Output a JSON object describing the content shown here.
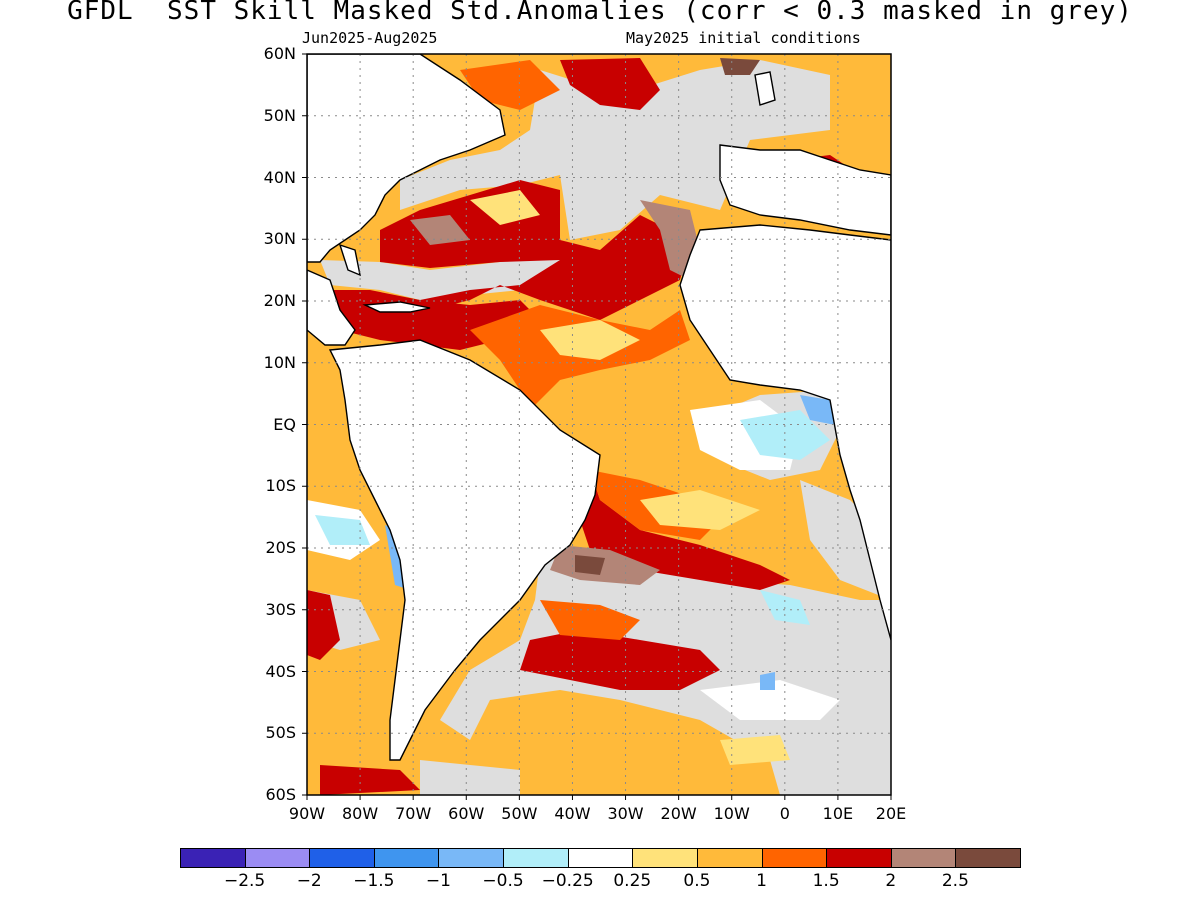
{
  "header": {
    "title": "GFDL  SST Skill Masked Std.Anomalies (corr < 0.3 masked in grey)",
    "period": "Jun2025-Aug2025",
    "init": "May2025 initial conditions"
  },
  "axes": {
    "lat_labels": [
      "60N",
      "50N",
      "40N",
      "30N",
      "20N",
      "10N",
      "EQ",
      "10S",
      "20S",
      "30S",
      "40S",
      "50S",
      "60S"
    ],
    "lon_labels": [
      "90W",
      "80W",
      "70W",
      "60W",
      "50W",
      "40W",
      "30W",
      "20W",
      "10W",
      "0",
      "10E",
      "20E"
    ]
  },
  "colorbar": {
    "colors": [
      "#3a22b5",
      "#9b8cf3",
      "#1f60e8",
      "#3f95ef",
      "#79b8f7",
      "#b1eef9",
      "#ffffff",
      "#ffe27a",
      "#ffba3a",
      "#ff6400",
      "#c80000",
      "#b38577",
      "#7a4a3c"
    ],
    "labels": [
      "−2.5",
      "−2",
      "−1.5",
      "−1",
      "−0.5",
      "−0.25",
      "0.25",
      "0.5",
      "1",
      "1.5",
      "2",
      "2.5"
    ]
  },
  "legend": {
    "mask_color": "#dedede",
    "mask_meaning": "corr < 0.3 masked in grey"
  },
  "chart_data": {
    "type": "heatmap",
    "variable": "SST standardized anomaly",
    "lon_range": [
      -90,
      20
    ],
    "lat_range": [
      -60,
      60
    ],
    "levels": [
      -2.5,
      -2,
      -1.5,
      -1,
      -0.5,
      -0.25,
      0.25,
      0.5,
      1,
      1.5,
      2,
      2.5
    ]
  }
}
